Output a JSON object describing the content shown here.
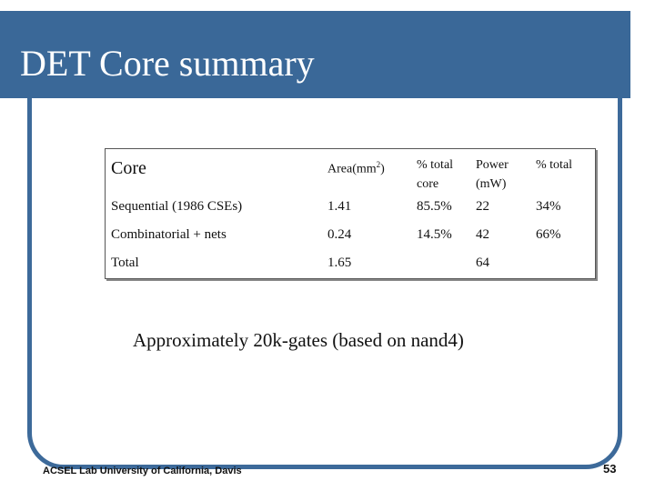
{
  "slide": {
    "title": "DET Core summary",
    "note": "Approximately 20k-gates (based on nand4)",
    "footer": "ACSEL Lab University of California, Davis",
    "page_number": "53"
  },
  "table": {
    "headers": {
      "core": "Core",
      "area": "Area(mm",
      "area_sup": "2",
      "area_end": ")",
      "pct_core_1": "% total",
      "pct_core_2": "core",
      "power_1": "Power",
      "power_2": "(mW)",
      "pct_total": "% total"
    },
    "rows": [
      {
        "label": "Sequential (1986 CSEs)",
        "area": "1.41",
        "pct_core": "85.5%",
        "power": "22",
        "pct_total": "34%"
      },
      {
        "label": "Combinatorial + nets",
        "area": "0.24",
        "pct_core": "14.5%",
        "power": "42",
        "pct_total": "66%"
      },
      {
        "label": "Total",
        "area": "1.65",
        "pct_core": "",
        "power": "64",
        "pct_total": ""
      }
    ]
  },
  "colors": {
    "title_bar": "#3a6898",
    "frame": "#3d6a9a"
  }
}
